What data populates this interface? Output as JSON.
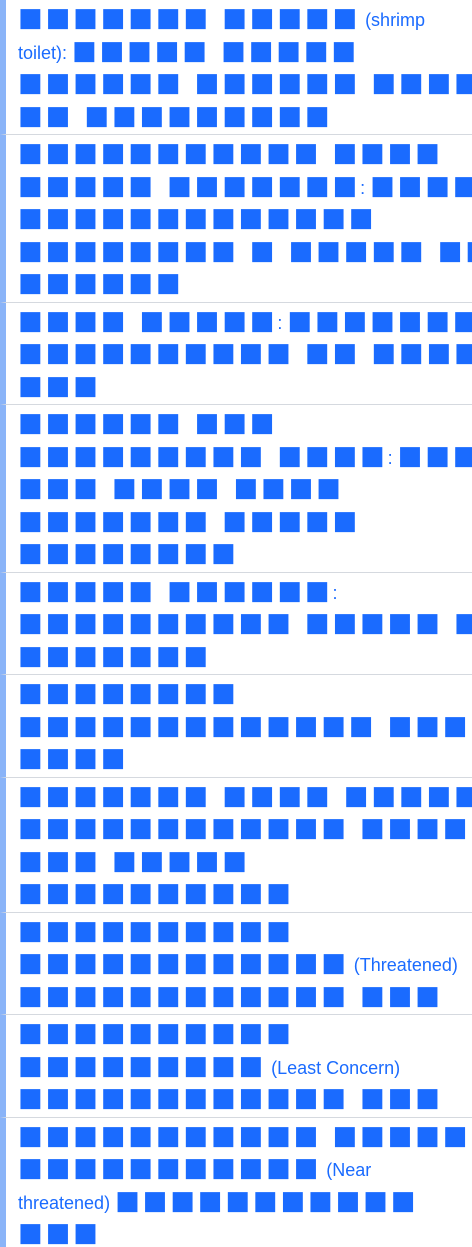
{
  "entries": [
    {
      "lines": [
        [
          "■■■■■■■ ■■■■■",
          "(shrimp"
        ],
        [
          "toilet):",
          "■■■■■ ■■■■■"
        ],
        [
          "■■■■■■ ■■■■■■ ■■■■■"
        ],
        [
          "■■ ■■■■■■■■■"
        ]
      ]
    },
    {
      "lines": [
        [
          "■■■■■■■■■■■ ■■■■"
        ],
        [
          "■■■■■ ■■■■■■■",
          ":",
          "■■■■■"
        ],
        [
          "■■■■■■■■■■■■■"
        ],
        [
          "■■■■■■■■ ■ ■■■■■ ■■"
        ],
        [
          "■■■■■■"
        ]
      ]
    },
    {
      "lines": [
        [
          "■■■■ ■■■■■",
          ":",
          "■■■■■■■■"
        ],
        [
          "■■■■■■■■■■ ■■ ■■■■"
        ],
        [
          "■■■"
        ]
      ]
    },
    {
      "lines": [
        [
          "■■■■■■ ■■■"
        ],
        [
          "■■■■■■■■■ ■■■■",
          ":",
          "■■■■"
        ],
        [
          "■■■ ■■■■ ■■■■"
        ],
        [
          "■■■■■■■ ■■■■■"
        ],
        [
          "■■■■■■■■"
        ]
      ]
    },
    {
      "lines": [
        [
          "■■■■■ ■■■■■■",
          ":"
        ],
        [
          "■■■■■■■■■■ ■■■■■ ■■"
        ],
        [
          "■■■■■■■"
        ]
      ]
    },
    {
      "lines": [
        [
          "■■■■■■■■"
        ],
        [
          "■■■■■■■■■■■■■ ■■■",
          ","
        ],
        [
          "■■■■"
        ]
      ]
    },
    {
      "lines": [
        [
          "■■■■■■■ ■■■■ ■■■■■",
          ":"
        ],
        [
          "■■■■■■■■■■■■ ■■■■"
        ],
        [
          "■■■ ■■■■■"
        ],
        [
          "■■■■■■■■■■"
        ]
      ]
    },
    {
      "lines": [
        [
          "■■■■■■■■■■"
        ],
        [
          "■■■■■■■■■■■■",
          "(Threatened)"
        ],
        [
          "■■■■■■■■■■■■ ■■■"
        ]
      ]
    },
    {
      "lines": [
        [
          "■■■■■■■■■■"
        ],
        [
          "■■■■■■■■■",
          "(Least Concern)"
        ],
        [
          "■■■■■■■■■■■■ ■■■"
        ]
      ]
    },
    {
      "lines": [
        [
          "■■■■■■■■■■■ ■■■■■"
        ],
        [
          "■■■■■■■■■■■",
          "(Near"
        ],
        [
          "threatened)",
          "■■■■■■■■■■■"
        ],
        [
          "■■■"
        ]
      ]
    }
  ]
}
